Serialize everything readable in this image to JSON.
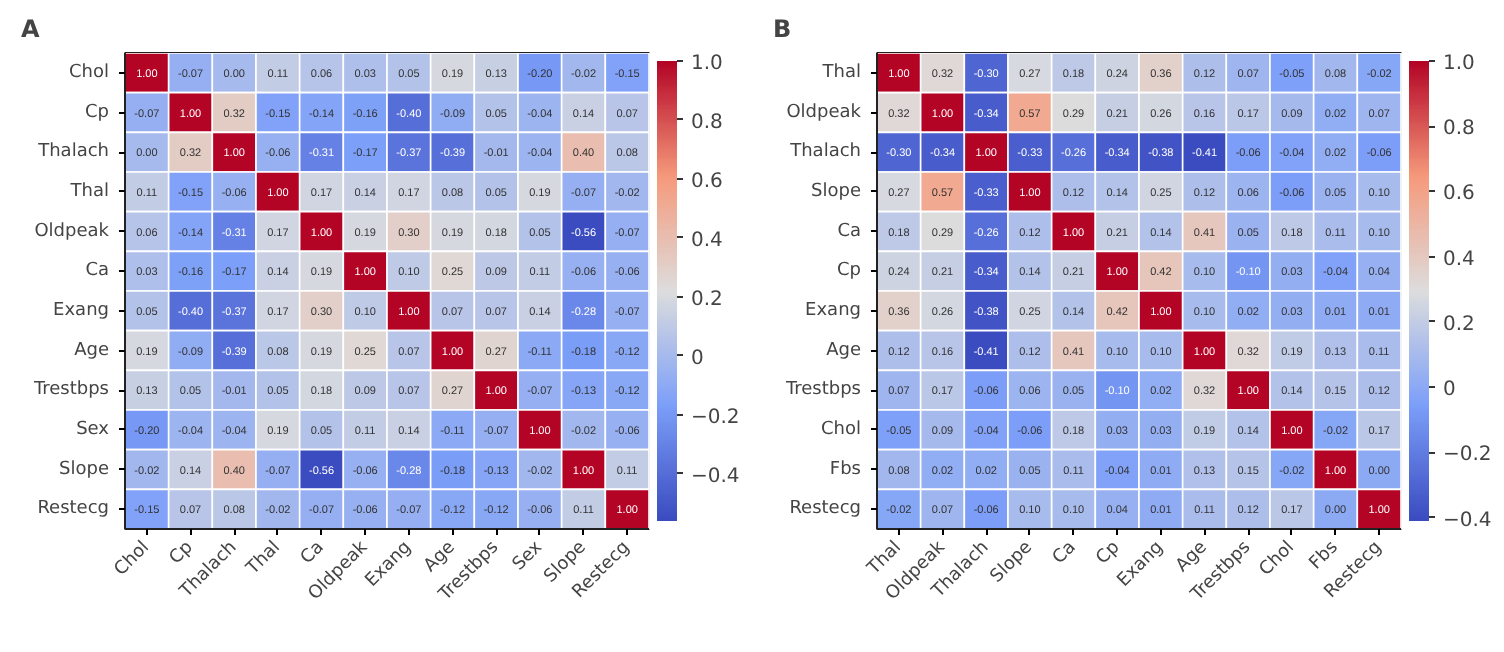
{
  "chart_data": [
    {
      "type": "heatmap",
      "title": "A",
      "categories": [
        "Chol",
        "Cp",
        "Thalach",
        "Thal",
        "Ca",
        "Oldpeak",
        "Exang",
        "Age",
        "Trestbps",
        "Sex",
        "Slope",
        "Restecg"
      ],
      "y_categories": [
        "Chol",
        "Cp",
        "Thalach",
        "Thal",
        "Oldpeak",
        "Ca",
        "Exang",
        "Age",
        "Trestbps",
        "Sex",
        "Slope",
        "Restecg"
      ],
      "cells": [
        [
          1.0,
          -0.07,
          0.0,
          0.11,
          0.06,
          0.03,
          0.05,
          0.19,
          0.13,
          -0.2,
          -0.02,
          -0.15
        ],
        [
          -0.07,
          1.0,
          0.32,
          -0.15,
          -0.14,
          -0.16,
          -0.4,
          -0.09,
          0.05,
          -0.04,
          0.14,
          0.07
        ],
        [
          0.0,
          0.32,
          1.0,
          -0.06,
          -0.31,
          -0.17,
          -0.37,
          -0.39,
          -0.01,
          -0.04,
          0.4,
          0.08
        ],
        [
          0.11,
          -0.15,
          -0.06,
          1.0,
          0.17,
          0.14,
          0.17,
          0.08,
          0.05,
          0.19,
          -0.07,
          -0.02
        ],
        [
          0.06,
          -0.14,
          -0.31,
          0.17,
          1.0,
          0.19,
          0.3,
          0.19,
          0.18,
          0.05,
          -0.56,
          -0.07
        ],
        [
          0.03,
          -0.16,
          -0.17,
          0.14,
          0.19,
          1.0,
          0.1,
          0.25,
          0.09,
          0.11,
          -0.06,
          -0.06
        ],
        [
          0.05,
          -0.4,
          -0.37,
          0.17,
          0.3,
          0.1,
          1.0,
          0.07,
          0.07,
          0.14,
          -0.28,
          -0.07
        ],
        [
          0.19,
          -0.09,
          -0.39,
          0.08,
          0.19,
          0.25,
          0.07,
          1.0,
          0.27,
          -0.11,
          -0.18,
          -0.12
        ],
        [
          0.13,
          0.05,
          -0.01,
          0.05,
          0.18,
          0.09,
          0.07,
          0.27,
          1.0,
          -0.07,
          -0.13,
          -0.12
        ],
        [
          -0.2,
          -0.04,
          -0.04,
          0.19,
          0.05,
          0.11,
          0.14,
          -0.11,
          -0.07,
          1.0,
          -0.02,
          -0.06
        ],
        [
          -0.02,
          0.14,
          0.4,
          -0.07,
          -0.56,
          -0.06,
          -0.28,
          -0.18,
          -0.13,
          -0.02,
          1.0,
          0.11
        ],
        [
          -0.15,
          0.07,
          0.08,
          -0.02,
          -0.07,
          -0.06,
          -0.07,
          -0.12,
          -0.12,
          -0.06,
          0.11,
          1.0
        ]
      ],
      "cell_labels": [
        [
          "1.00",
          "-0.07",
          "0.00",
          "0.11",
          "0.06",
          "0.03",
          "0.05",
          "0.19",
          "0.13",
          "-0.20",
          "-0.02",
          "-0.15"
        ],
        [
          "-0.07",
          "1.00",
          "0.32",
          "-0.15",
          "-0.14",
          "-0.16",
          "-0.40",
          "-0.09",
          "0.05",
          "-0.04",
          "0.14",
          "0.07"
        ],
        [
          "0.00",
          "0.32",
          "1.00",
          "-0.06",
          "-0.31",
          "-0.17",
          "-0.37",
          "-0.39",
          "-0.01",
          "-0.04",
          "0.40",
          "0.08"
        ],
        [
          "0.11",
          "-0.15",
          "-0.06",
          "1.00",
          "0.17",
          "0.14",
          "0.17",
          "0.08",
          "0.05",
          "0.19",
          "-0.07",
          "-0.02"
        ],
        [
          "0.06",
          "-0.14",
          "-0.31",
          "0.17",
          "1.00",
          "0.19",
          "0.30",
          "0.19",
          "0.18",
          "0.05",
          "-0.56",
          "-0.07"
        ],
        [
          "0.03",
          "-0.16",
          "-0.17",
          "0.14",
          "0.19",
          "1.00",
          "0.10",
          "0.25",
          "0.09",
          "0.11",
          "-0.06",
          "-0.06"
        ],
        [
          "0.05",
          "-0.40",
          "-0.37",
          "0.17",
          "0.30",
          "0.10",
          "1.00",
          "0.07",
          "0.07",
          "0.14",
          "-0.28",
          "-0.07"
        ],
        [
          "0.19",
          "-0.09",
          "-0.39",
          "0.08",
          "0.19",
          "0.25",
          "0.07",
          "1.00",
          "0.27",
          "-0.11",
          "-0.18",
          "-0.12"
        ],
        [
          "0.13",
          "0.05",
          "-0.01",
          "0.05",
          "0.18",
          "0.09",
          "0.07",
          "0.27",
          "1.00",
          "-0.07",
          "-0.13",
          "-0.12"
        ],
        [
          "-0.20",
          "-0.04",
          "-0.04",
          "0.19",
          "0.05",
          "0.11",
          "0.14",
          "-0.11",
          "-0.07",
          "1.00",
          "-0.02",
          "-0.06"
        ],
        [
          "-0.02",
          "0.14",
          "0.40",
          "-0.07",
          "-0.56",
          "-0.06",
          "-0.28",
          "-0.18",
          "-0.13",
          "-0.02",
          "1.00",
          "0.11"
        ],
        [
          "-0.15",
          "0.07",
          "0.08",
          "-0.02",
          "-0.07",
          "-0.06",
          "-0.07",
          "-0.12",
          "-0.12",
          "-0.06",
          "0.11",
          "1.00"
        ]
      ],
      "clim": [
        -0.56,
        1.0
      ],
      "cticks": [
        {
          "value": -0.4,
          "label": "−0.4"
        },
        {
          "value": -0.2,
          "label": "−0.2"
        },
        0,
        {
          "value": 0.2,
          "label": "0.2"
        },
        {
          "value": 0.4,
          "label": "0.4"
        },
        {
          "value": 0.6,
          "label": "0.6"
        },
        {
          "value": 0.8,
          "label": "0.8"
        },
        {
          "value": 1.0,
          "label": "1.0"
        }
      ]
    },
    {
      "type": "heatmap",
      "title": "B",
      "categories": [
        "Thal",
        "Oldpeak",
        "Thalach",
        "Slope",
        "Ca",
        "Cp",
        "Exang",
        "Age",
        "Trestbps",
        "Chol",
        "Fbs",
        "Restecg"
      ],
      "y_categories": [
        "Thal",
        "Oldpeak",
        "Thalach",
        "Slope",
        "Ca",
        "Cp",
        "Exang",
        "Age",
        "Trestbps",
        "Chol",
        "Fbs",
        "Restecg"
      ],
      "cells": [
        [
          1.0,
          0.32,
          -0.3,
          0.27,
          0.18,
          0.24,
          0.36,
          0.12,
          0.07,
          -0.05,
          0.08,
          -0.02
        ],
        [
          0.32,
          1.0,
          -0.34,
          0.57,
          0.29,
          0.21,
          0.26,
          0.16,
          0.17,
          0.09,
          0.02,
          0.07
        ],
        [
          -0.3,
          -0.34,
          1.0,
          -0.33,
          -0.26,
          -0.34,
          -0.38,
          -0.41,
          -0.06,
          -0.04,
          0.02,
          -0.06
        ],
        [
          0.27,
          0.57,
          -0.33,
          1.0,
          0.12,
          0.14,
          0.25,
          0.12,
          0.06,
          -0.06,
          0.05,
          0.1
        ],
        [
          0.18,
          0.29,
          -0.26,
          0.12,
          1.0,
          0.21,
          0.14,
          0.41,
          0.05,
          0.18,
          0.11,
          0.1
        ],
        [
          0.24,
          0.21,
          -0.34,
          0.14,
          0.21,
          1.0,
          0.42,
          0.1,
          -0.1,
          0.03,
          -0.04,
          0.04
        ],
        [
          0.36,
          0.26,
          -0.38,
          0.25,
          0.14,
          0.42,
          1.0,
          0.1,
          0.02,
          0.03,
          0.01,
          0.01
        ],
        [
          0.12,
          0.16,
          -0.41,
          0.12,
          0.41,
          0.1,
          0.1,
          1.0,
          0.32,
          0.19,
          0.13,
          0.11
        ],
        [
          0.07,
          0.17,
          -0.06,
          0.06,
          0.05,
          -0.1,
          0.02,
          0.32,
          1.0,
          0.14,
          0.15,
          0.12
        ],
        [
          -0.05,
          0.09,
          -0.04,
          -0.06,
          0.18,
          0.03,
          0.03,
          0.19,
          0.14,
          1.0,
          -0.02,
          0.17
        ],
        [
          0.08,
          0.02,
          0.02,
          0.05,
          0.11,
          -0.04,
          0.01,
          0.13,
          0.15,
          -0.02,
          1.0,
          0.0
        ],
        [
          -0.02,
          0.07,
          -0.06,
          0.1,
          0.1,
          0.04,
          0.01,
          0.11,
          0.12,
          0.17,
          0.0,
          1.0
        ]
      ],
      "cell_labels": [
        [
          "1.00",
          "0.32",
          "-0.30",
          "0.27",
          "0.18",
          "0.24",
          "0.36",
          "0.12",
          "0.07",
          "-0.05",
          "0.08",
          "-0.02"
        ],
        [
          "0.32",
          "1.00",
          "-0.34",
          "0.57",
          "0.29",
          "0.21",
          "0.26",
          "0.16",
          "0.17",
          "0.09",
          "0.02",
          "0.07"
        ],
        [
          "-0.30",
          "-0.34",
          "1.00",
          "-0.33",
          "-0.26",
          "-0.34",
          "-0.38",
          "-0.41",
          "-0.06",
          "-0.04",
          "0.02",
          "-0.06"
        ],
        [
          "0.27",
          "0.57",
          "-0.33",
          "1.00",
          "0.12",
          "0.14",
          "0.25",
          "0.12",
          "0.06",
          "-0.06",
          "0.05",
          "0.10"
        ],
        [
          "0.18",
          "0.29",
          "-0.26",
          "0.12",
          "1.00",
          "0.21",
          "0.14",
          "0.41",
          "0.05",
          "0.18",
          "0.11",
          "0.10"
        ],
        [
          "0.24",
          "0.21",
          "-0.34",
          "0.14",
          "0.21",
          "1.00",
          "0.42",
          "0.10",
          "-0.10",
          "0.03",
          "-0.04",
          "0.04"
        ],
        [
          "0.36",
          "0.26",
          "-0.38",
          "0.25",
          "0.14",
          "0.42",
          "1.00",
          "0.10",
          "0.02",
          "0.03",
          "0.01",
          "0.01"
        ],
        [
          "0.12",
          "0.16",
          "-0.41",
          "0.12",
          "0.41",
          "0.10",
          "0.10",
          "1.00",
          "0.32",
          "0.19",
          "0.13",
          "0.11"
        ],
        [
          "0.07",
          "0.17",
          "-0.06",
          "0.06",
          "0.05",
          "-0.10",
          "0.02",
          "0.32",
          "1.00",
          "0.14",
          "0.15",
          "0.12"
        ],
        [
          "-0.05",
          "0.09",
          "-0.04",
          "-0.06",
          "0.18",
          "0.03",
          "0.03",
          "0.19",
          "0.14",
          "1.00",
          "-0.02",
          "0.17"
        ],
        [
          "0.08",
          "0.02",
          "0.02",
          "0.05",
          "0.11",
          "-0.04",
          "0.01",
          "0.13",
          "0.15",
          "-0.02",
          "1.00",
          "0.00"
        ],
        [
          "-0.02",
          "0.07",
          "-0.06",
          "0.10",
          "0.10",
          "0.04",
          "0.01",
          "0.11",
          "0.12",
          "0.17",
          "0.00",
          "1.00"
        ]
      ],
      "clim": [
        -0.41,
        1.0
      ],
      "cticks": [
        {
          "value": -0.4,
          "label": "−0.4"
        },
        {
          "value": -0.2,
          "label": "−0.2"
        },
        0,
        {
          "value": 0.2,
          "label": "0.2"
        },
        {
          "value": 0.4,
          "label": "0.4"
        },
        {
          "value": 0.6,
          "label": "0.6"
        },
        {
          "value": 0.8,
          "label": "0.8"
        },
        {
          "value": 1.0,
          "label": "1.0"
        }
      ]
    }
  ]
}
